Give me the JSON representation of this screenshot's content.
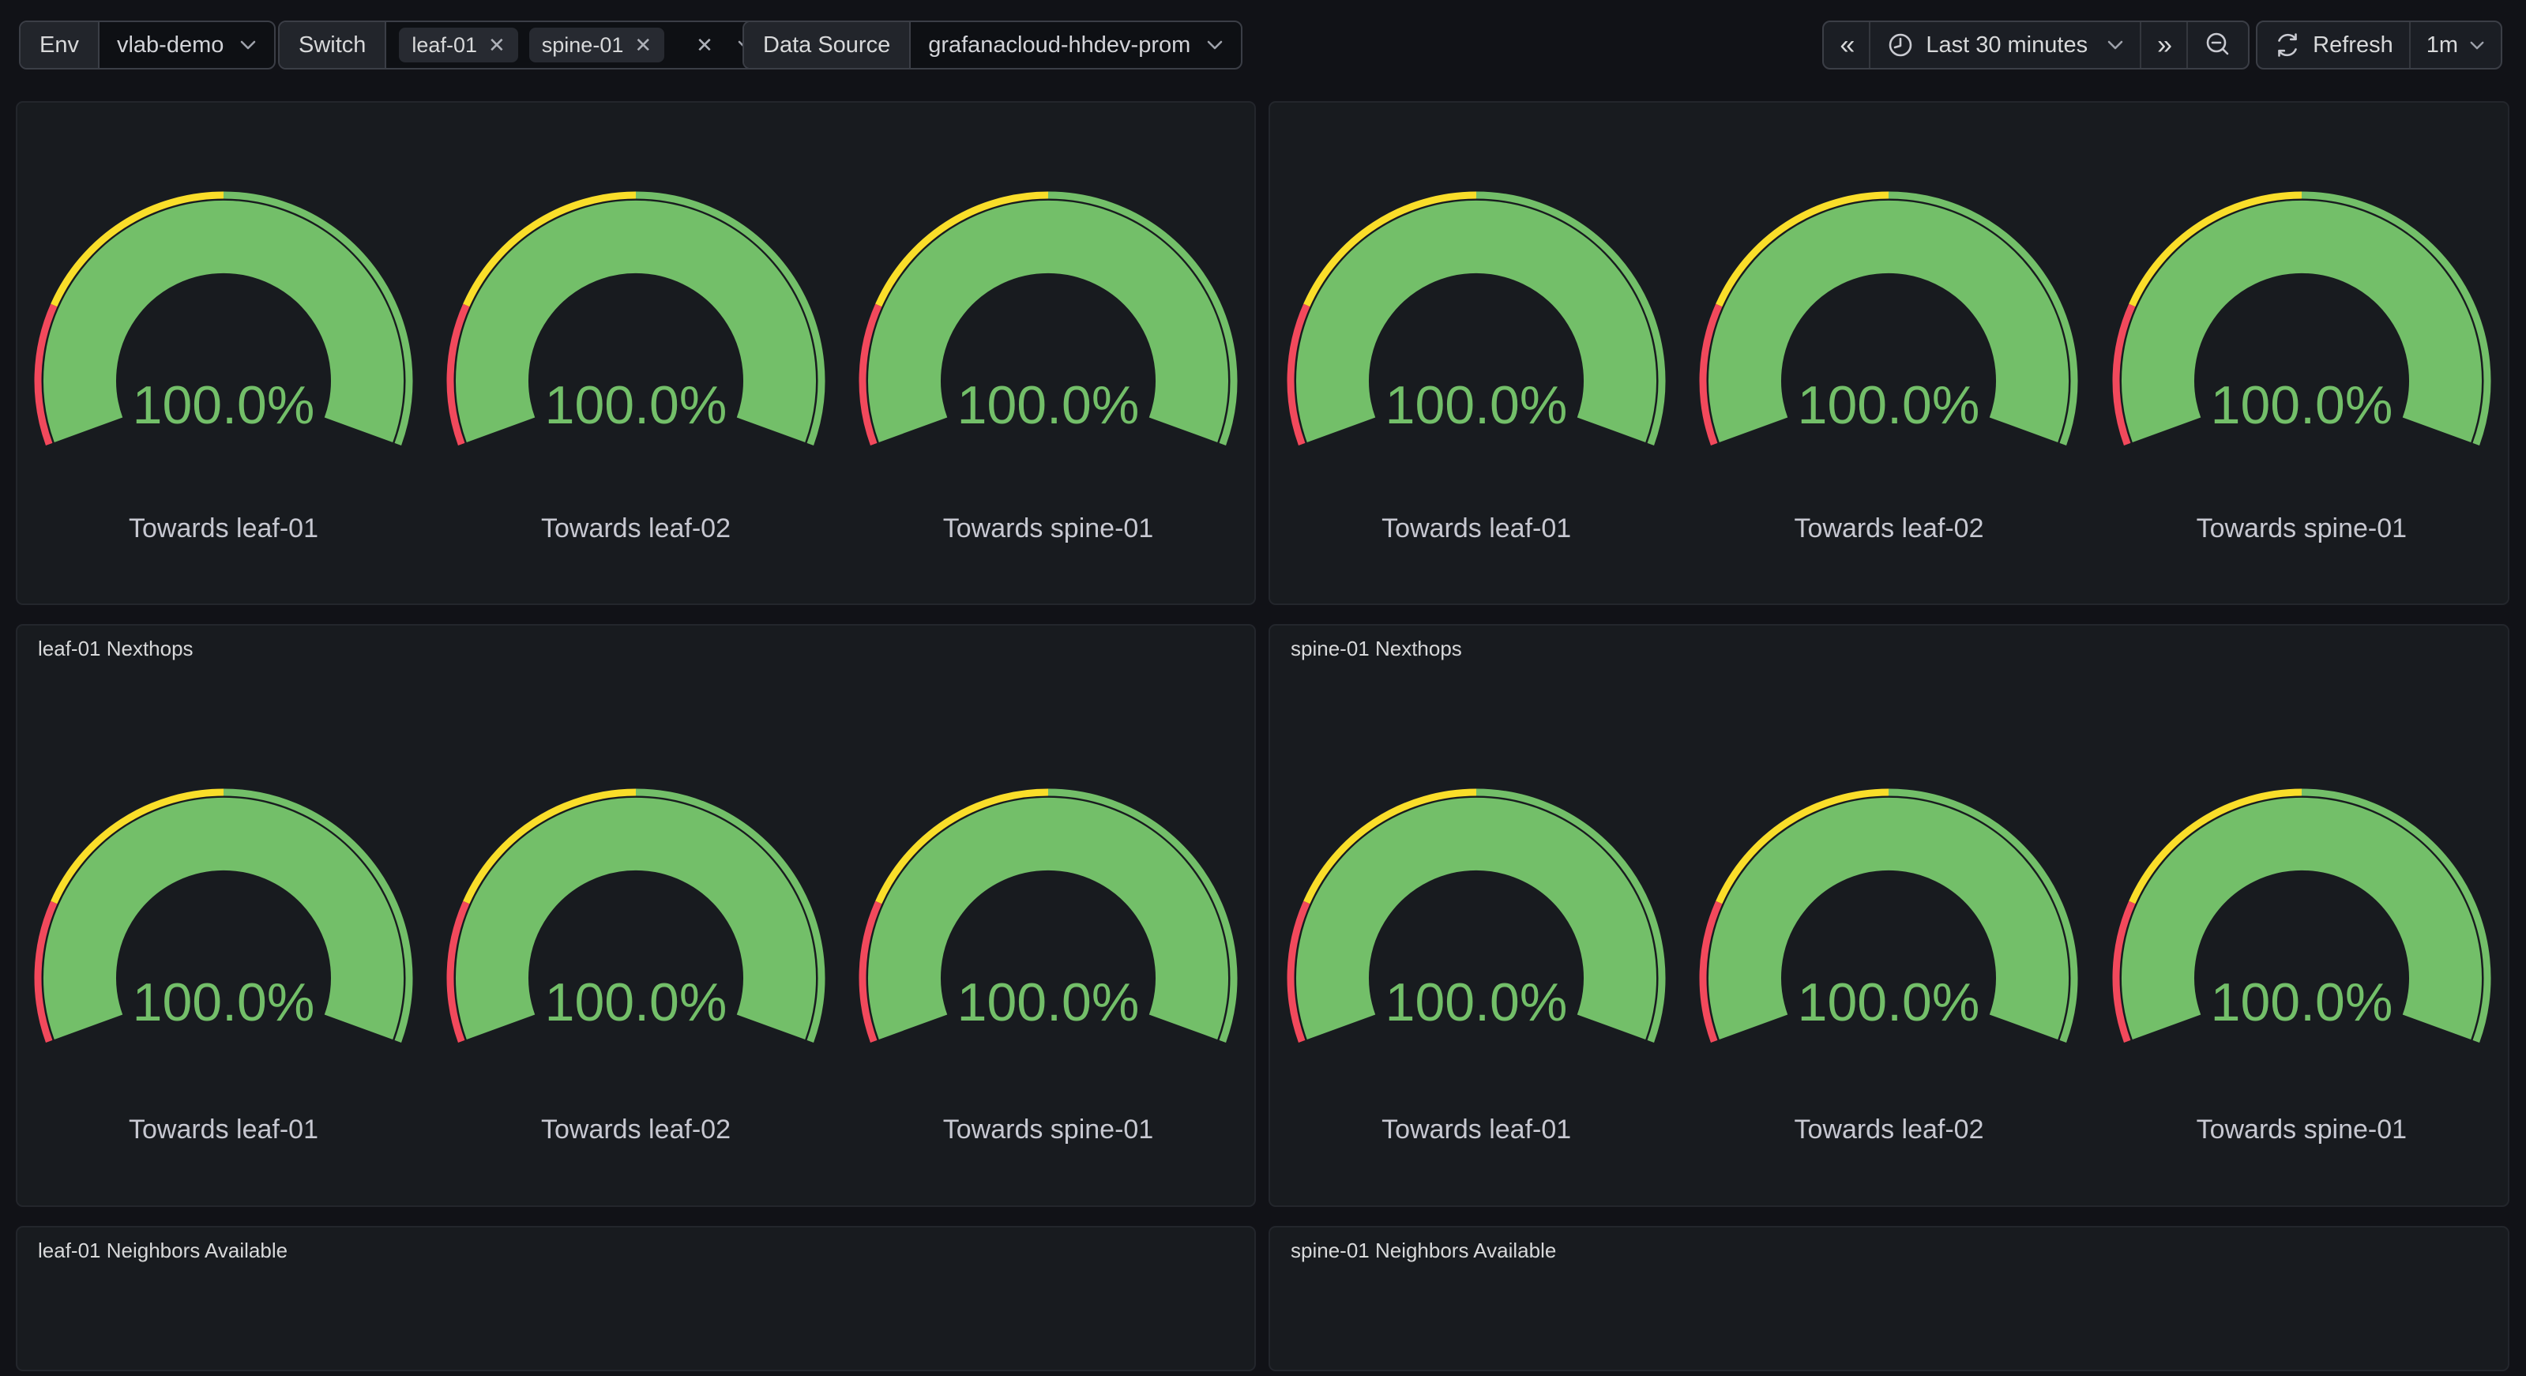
{
  "toolbar": {
    "env": {
      "label": "Env",
      "value": "vlab-demo"
    },
    "switch": {
      "label": "Switch",
      "tags": [
        "leaf-01",
        "spine-01"
      ],
      "pill_close_glyph": "✕",
      "clear_glyph": "✕"
    },
    "datasource": {
      "label": "Data Source",
      "value": "grafanacloud-hhdev-prom"
    },
    "time": {
      "back_glyph": "«",
      "range_label": "Last 30 minutes",
      "forward_glyph": "»"
    },
    "refresh": {
      "label": "Refresh",
      "interval": "1m"
    }
  },
  "panels": {
    "row3_left": {
      "title": "leaf-01 Neighbors Available"
    },
    "row3_right": {
      "title": "spine-01 Neighbors Available"
    }
  },
  "icons": {
    "clock": "clock-icon",
    "zoom_out": "magnifier-minus-icon",
    "refresh": "sync-icon",
    "back": "double-chevron-left-icon",
    "forward": "double-chevron-right-icon",
    "dropdown": "chevron-down-icon",
    "remove": "x-icon"
  },
  "colors": {
    "page_bg": "#111217",
    "panel_bg": "#181b1f",
    "green": "#73BF69",
    "yellow": "#FADE2A",
    "red": "#F2495C",
    "text": "#d8d9da"
  },
  "chart_data": [
    {
      "type": "gauge",
      "panel": "row1-left",
      "title": "",
      "min": 0,
      "max": 100,
      "unit": "%",
      "thresholds": [
        {
          "from": 0,
          "to": 20,
          "color": "#F2495C"
        },
        {
          "from": 20,
          "to": 50,
          "color": "#FADE2A"
        },
        {
          "from": 50,
          "to": 100,
          "color": "#73BF69"
        }
      ],
      "gauges": [
        {
          "label": "Towards leaf-01",
          "value": 100.0,
          "display": "100.0%"
        },
        {
          "label": "Towards leaf-02",
          "value": 100.0,
          "display": "100.0%"
        },
        {
          "label": "Towards spine-01",
          "value": 100.0,
          "display": "100.0%"
        }
      ]
    },
    {
      "type": "gauge",
      "panel": "row1-right",
      "title": "",
      "min": 0,
      "max": 100,
      "unit": "%",
      "thresholds": [
        {
          "from": 0,
          "to": 20,
          "color": "#F2495C"
        },
        {
          "from": 20,
          "to": 50,
          "color": "#FADE2A"
        },
        {
          "from": 50,
          "to": 100,
          "color": "#73BF69"
        }
      ],
      "gauges": [
        {
          "label": "Towards leaf-01",
          "value": 100.0,
          "display": "100.0%"
        },
        {
          "label": "Towards leaf-02",
          "value": 100.0,
          "display": "100.0%"
        },
        {
          "label": "Towards spine-01",
          "value": 100.0,
          "display": "100.0%"
        }
      ]
    },
    {
      "type": "gauge",
      "panel": "row2-left",
      "title": "leaf-01 Nexthops",
      "min": 0,
      "max": 100,
      "unit": "%",
      "thresholds": [
        {
          "from": 0,
          "to": 20,
          "color": "#F2495C"
        },
        {
          "from": 20,
          "to": 50,
          "color": "#FADE2A"
        },
        {
          "from": 50,
          "to": 100,
          "color": "#73BF69"
        }
      ],
      "gauges": [
        {
          "label": "Towards leaf-01",
          "value": 100.0,
          "display": "100.0%"
        },
        {
          "label": "Towards leaf-02",
          "value": 100.0,
          "display": "100.0%"
        },
        {
          "label": "Towards spine-01",
          "value": 100.0,
          "display": "100.0%"
        }
      ]
    },
    {
      "type": "gauge",
      "panel": "row2-right",
      "title": "spine-01 Nexthops",
      "min": 0,
      "max": 100,
      "unit": "%",
      "thresholds": [
        {
          "from": 0,
          "to": 20,
          "color": "#F2495C"
        },
        {
          "from": 20,
          "to": 50,
          "color": "#FADE2A"
        },
        {
          "from": 50,
          "to": 100,
          "color": "#73BF69"
        }
      ],
      "gauges": [
        {
          "label": "Towards leaf-01",
          "value": 100.0,
          "display": "100.0%"
        },
        {
          "label": "Towards leaf-02",
          "value": 100.0,
          "display": "100.0%"
        },
        {
          "label": "Towards spine-01",
          "value": 100.0,
          "display": "100.0%"
        }
      ]
    }
  ]
}
